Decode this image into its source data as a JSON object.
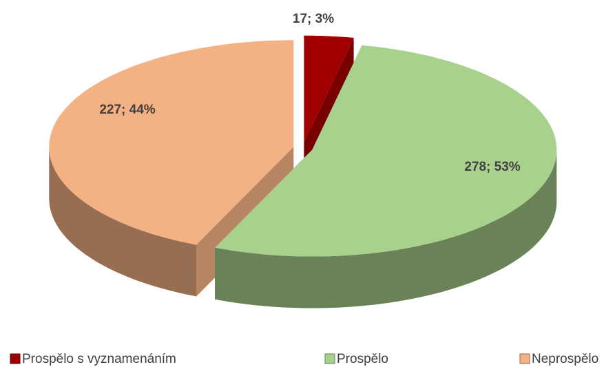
{
  "chart_data": {
    "type": "pie",
    "categories": [
      "Prospělo s vyznamenáním",
      "Prospělo",
      "Neprospělo"
    ],
    "values": [
      17,
      278,
      227
    ],
    "value_labels": [
      "17; 3%",
      "278; 53%",
      "227; 44%"
    ],
    "colors": [
      "#a00000",
      "#a9d18e",
      "#f4b183"
    ],
    "legend": "bottom"
  }
}
